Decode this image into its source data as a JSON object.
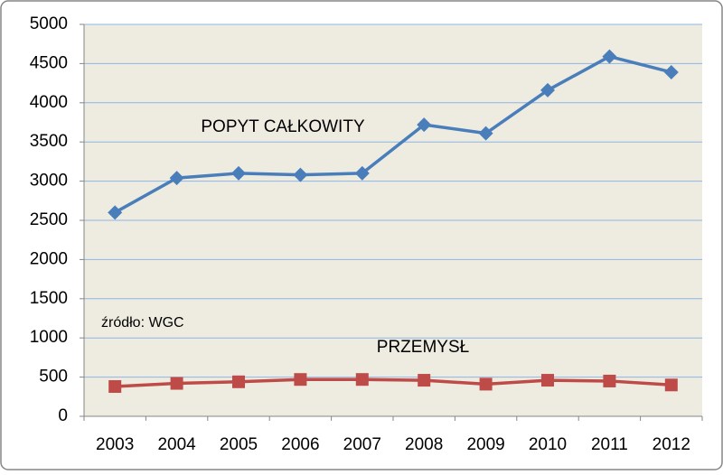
{
  "chart_data": {
    "type": "line",
    "categories": [
      "2003",
      "2004",
      "2005",
      "2006",
      "2007",
      "2008",
      "2009",
      "2010",
      "2011",
      "2012"
    ],
    "series": [
      {
        "name": "POPYT CAŁKOWITY",
        "color": "#4a7ebb",
        "marker": "diamond",
        "values": [
          2600,
          3040,
          3100,
          3080,
          3100,
          3720,
          3610,
          4160,
          4590,
          4390
        ]
      },
      {
        "name": "PRZEMYSŁ",
        "color": "#be4b48",
        "marker": "square",
        "values": [
          380,
          420,
          440,
          470,
          470,
          460,
          410,
          460,
          450,
          400
        ]
      }
    ],
    "annotations": [
      "źródło: WGC"
    ],
    "ylim": [
      0,
      5000
    ],
    "yticks": [
      0,
      500,
      1000,
      1500,
      2000,
      2500,
      3000,
      3500,
      4000,
      4500,
      5000
    ],
    "grid": true,
    "plot_background": "#eeece1",
    "grid_color": "#8eb4e3"
  }
}
